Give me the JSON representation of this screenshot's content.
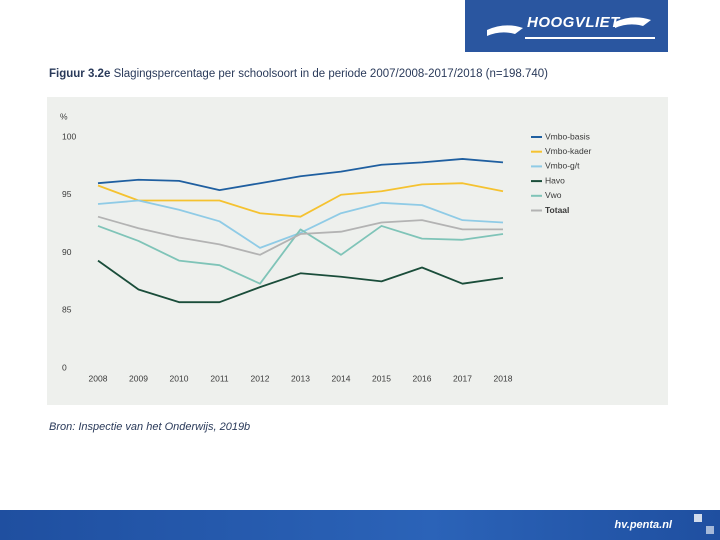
{
  "logo": "HOOGVLIET",
  "footer": "hv.penta.nl",
  "chart_data": {
    "type": "line",
    "figure_number": "Figuur 3.2e",
    "title": "Slagingspercentage per schoolsoort in de periode 2007/2008-2017/2018 (n=198.740)",
    "y_label": "%",
    "source": "Bron: Inspectie van het Onderwijs, 2019b",
    "categories": [
      "2008",
      "2009",
      "2010",
      "2011",
      "2012",
      "2013",
      "2014",
      "2015",
      "2016",
      "2017",
      "2018"
    ],
    "ylim": [
      0,
      100
    ],
    "y_axis_break": [
      0,
      85
    ],
    "yticks": [
      0,
      85,
      90,
      95,
      100
    ],
    "grid": false,
    "legend": "right",
    "series": [
      {
        "name": "Vmbo-basis",
        "color": "#1f5fa0",
        "values": [
          96.0,
          96.3,
          96.2,
          95.4,
          96.0,
          96.6,
          97.0,
          97.6,
          97.8,
          98.1,
          97.8
        ]
      },
      {
        "name": "Vmbo-kader",
        "color": "#f5c230",
        "values": [
          95.8,
          94.5,
          94.5,
          94.5,
          93.4,
          93.1,
          95.0,
          95.3,
          95.9,
          96.0,
          95.3
        ]
      },
      {
        "name": "Vmbo-g/t",
        "color": "#8fcbe6",
        "values": [
          94.2,
          94.5,
          93.7,
          92.7,
          90.4,
          91.7,
          93.4,
          94.3,
          94.1,
          92.8,
          92.6
        ]
      },
      {
        "name": "Havo",
        "color": "#1a4d3a",
        "values": [
          89.3,
          86.8,
          85.7,
          85.7,
          87.0,
          88.2,
          87.9,
          87.5,
          88.7,
          87.3,
          87.8
        ]
      },
      {
        "name": "Vwo",
        "color": "#7fc4b8",
        "values": [
          92.3,
          91.0,
          89.3,
          88.9,
          87.3,
          92.0,
          89.8,
          92.3,
          91.2,
          91.1,
          91.6
        ]
      },
      {
        "name": "Totaal",
        "color": "#b3b3b3",
        "values": [
          93.1,
          92.1,
          91.3,
          90.7,
          89.8,
          91.6,
          91.8,
          92.6,
          92.8,
          92.0,
          92.0
        ]
      }
    ]
  }
}
